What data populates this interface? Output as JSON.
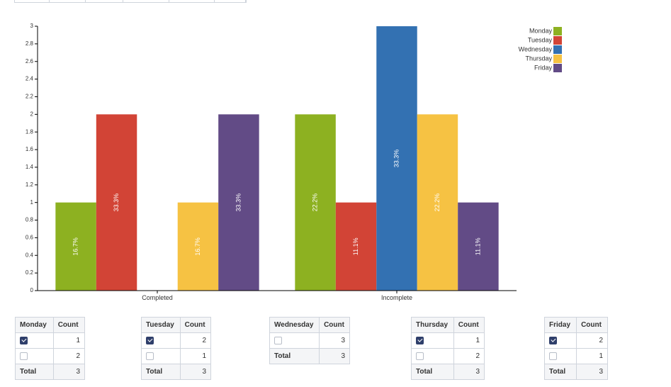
{
  "chart_data": {
    "type": "bar",
    "categories": [
      "Completed",
      "Incomplete"
    ],
    "series": [
      {
        "name": "Monday",
        "color": "#8db121",
        "values": [
          1,
          2
        ],
        "labels": [
          "16.7%",
          "22.2%"
        ]
      },
      {
        "name": "Tuesday",
        "color": "#d24436",
        "values": [
          2,
          1
        ],
        "labels": [
          "33.3%",
          "11.1%"
        ]
      },
      {
        "name": "Wednesday",
        "color": "#3371b2",
        "values": [
          0,
          3
        ],
        "labels": [
          "",
          "33.3%"
        ]
      },
      {
        "name": "Thursday",
        "color": "#f6c243",
        "values": [
          1,
          2
        ],
        "labels": [
          "16.7%",
          "22.2%"
        ]
      },
      {
        "name": "Friday",
        "color": "#624b86",
        "values": [
          2,
          1
        ],
        "labels": [
          "33.3%",
          "11.1%"
        ]
      }
    ],
    "ylim": [
      0,
      3
    ],
    "yticks": [
      "0",
      "0.2",
      "0.4",
      "0.6",
      "0.8",
      "1",
      "1.2",
      "1.4",
      "1.6",
      "1.8",
      "2",
      "2.2",
      "2.4",
      "2.6",
      "2.8",
      "3"
    ],
    "xlabel": "",
    "ylabel": "",
    "grid": false,
    "legend_position": "top-right"
  },
  "tables": [
    {
      "header": [
        "Monday",
        "Count"
      ],
      "rows": [
        {
          "checked": true,
          "count": "1"
        },
        {
          "checked": false,
          "count": "2"
        }
      ],
      "total_label": "Total",
      "total": "3"
    },
    {
      "header": [
        "Tuesday",
        "Count"
      ],
      "rows": [
        {
          "checked": true,
          "count": "2"
        },
        {
          "checked": false,
          "count": "1"
        }
      ],
      "total_label": "Total",
      "total": "3"
    },
    {
      "header": [
        "Wednesday",
        "Count"
      ],
      "rows": [
        {
          "checked": false,
          "count": "3"
        }
      ],
      "total_label": "Total",
      "total": "3"
    },
    {
      "header": [
        "Thursday",
        "Count"
      ],
      "rows": [
        {
          "checked": true,
          "count": "1"
        },
        {
          "checked": false,
          "count": "2"
        }
      ],
      "total_label": "Total",
      "total": "3"
    },
    {
      "header": [
        "Friday",
        "Count"
      ],
      "rows": [
        {
          "checked": true,
          "count": "2"
        },
        {
          "checked": false,
          "count": "1"
        }
      ],
      "total_label": "Total",
      "total": "3"
    }
  ]
}
